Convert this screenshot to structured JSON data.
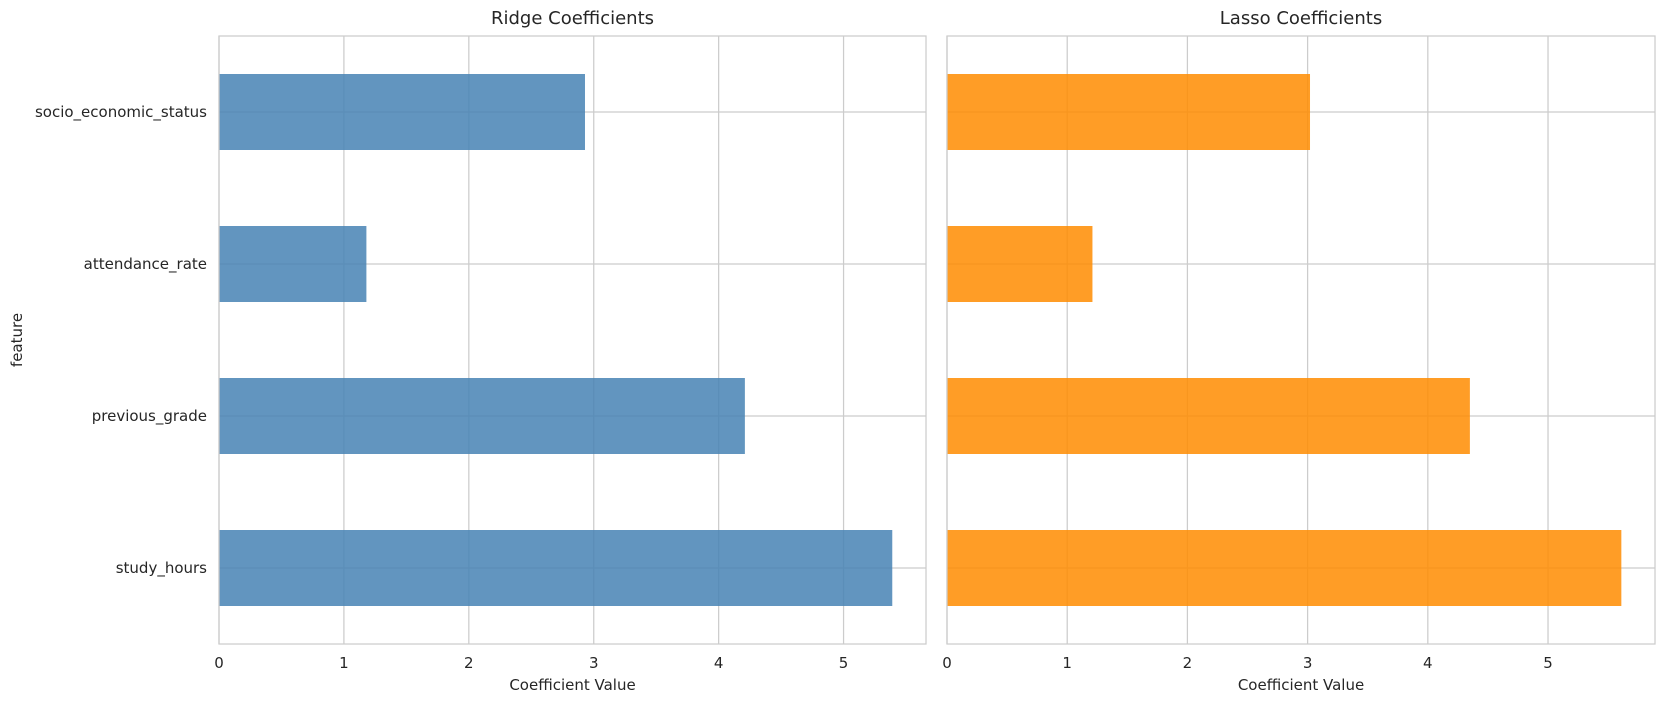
{
  "chart_data": [
    {
      "type": "bar",
      "orientation": "horizontal",
      "title": "Ridge Coefficients",
      "xlabel": "Coefficient Value",
      "ylabel": "feature",
      "categories": [
        "socio_economic_status",
        "attendance_rate",
        "previous_grade",
        "study_hours"
      ],
      "values": [
        2.93,
        1.18,
        4.21,
        5.39
      ],
      "xlim": [
        0,
        5.66
      ],
      "xticks": [
        "0",
        "1",
        "2",
        "3",
        "4",
        "5"
      ],
      "color": "#4682b4",
      "grid": true
    },
    {
      "type": "bar",
      "orientation": "horizontal",
      "title": "Lasso Coefficients",
      "xlabel": "Coefficient Value",
      "ylabel": "",
      "categories": [
        "socio_economic_status",
        "attendance_rate",
        "previous_grade",
        "study_hours"
      ],
      "values": [
        3.02,
        1.21,
        4.35,
        5.61
      ],
      "xlim": [
        0,
        5.89
      ],
      "xticks": [
        "0",
        "1",
        "2",
        "3",
        "4",
        "5"
      ],
      "color": "#ff8c00",
      "grid": true
    }
  ]
}
